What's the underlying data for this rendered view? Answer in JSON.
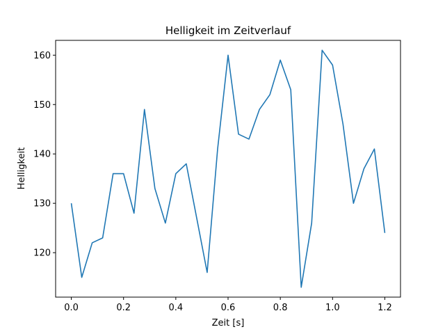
{
  "chart_data": {
    "type": "line",
    "title": "Helligkeit im Zeitverlauf",
    "xlabel": "Zeit [s]",
    "ylabel": "Helligkeit",
    "xlim": [
      -0.06,
      1.26
    ],
    "ylim": [
      111,
      163
    ],
    "grid": false,
    "line_color": "#1f77b4",
    "xticks": [
      0.0,
      0.2,
      0.4,
      0.6,
      0.8,
      1.0,
      1.2
    ],
    "xtick_labels": [
      "0.0",
      "0.2",
      "0.4",
      "0.6",
      "0.8",
      "1.0",
      "1.2"
    ],
    "yticks": [
      120,
      130,
      140,
      150,
      160
    ],
    "ytick_labels": [
      "120",
      "130",
      "140",
      "150",
      "160"
    ],
    "series": [
      {
        "x": [
          0.0,
          0.04,
          0.08,
          0.12,
          0.16,
          0.2,
          0.24,
          0.28,
          0.32,
          0.36,
          0.4,
          0.44,
          0.48,
          0.52,
          0.56,
          0.6,
          0.64,
          0.68,
          0.72,
          0.76,
          0.8,
          0.84,
          0.88,
          0.92,
          0.96,
          1.0,
          1.04,
          1.08,
          1.12,
          1.16,
          1.2
        ],
        "values": [
          130,
          115,
          122,
          123,
          136,
          136,
          128,
          149,
          133,
          126,
          136,
          138,
          127,
          116,
          141,
          160,
          144,
          143,
          149,
          152,
          159,
          153,
          113,
          126,
          161,
          158,
          146,
          130,
          137,
          141,
          124
        ]
      }
    ]
  }
}
